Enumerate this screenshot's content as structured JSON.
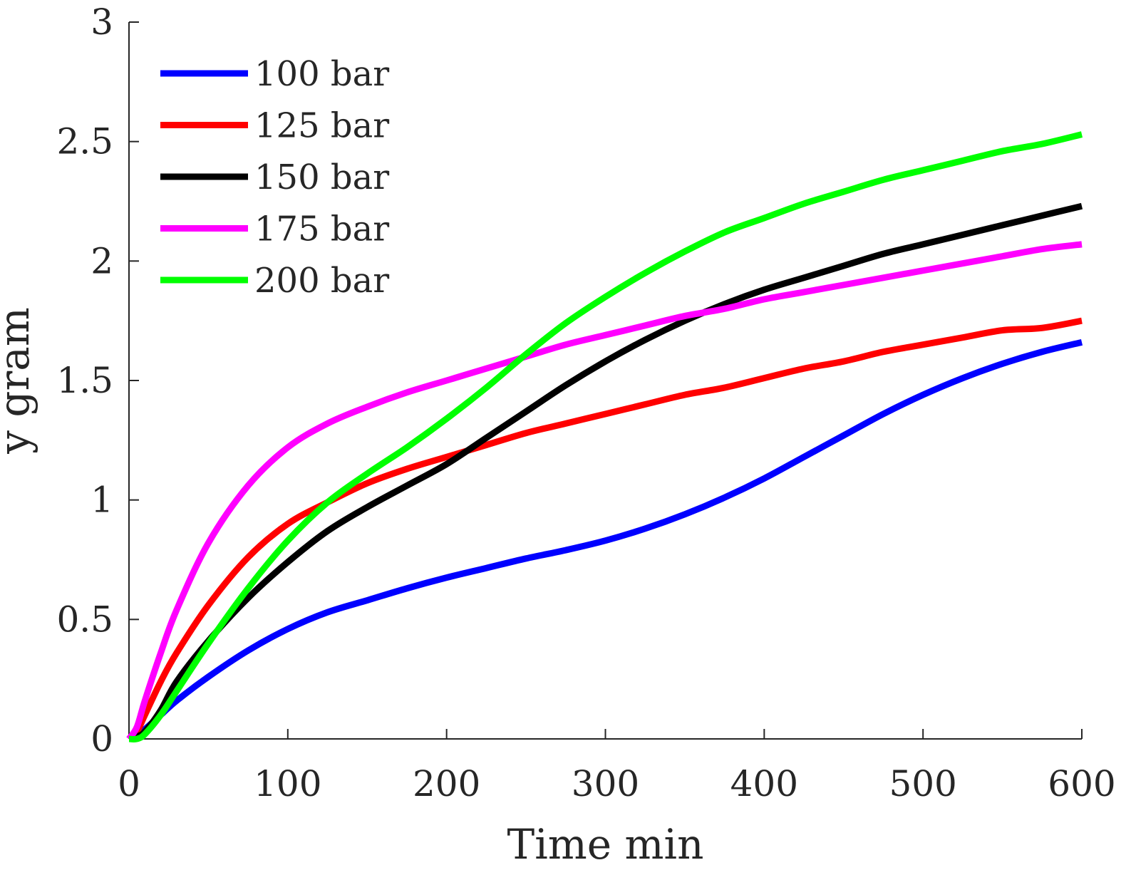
{
  "chart_data": {
    "type": "line",
    "title": "",
    "xlabel": "Time min",
    "ylabel": "y gram",
    "xlim": [
      0,
      600
    ],
    "ylim": [
      0,
      3
    ],
    "xticks": [
      0,
      100,
      200,
      300,
      400,
      500,
      600
    ],
    "yticks": [
      0,
      0.5,
      1,
      1.5,
      2,
      2.5,
      3
    ],
    "xtick_labels": [
      "0",
      "100",
      "200",
      "300",
      "400",
      "500",
      "600"
    ],
    "ytick_labels": [
      "0",
      "0.5",
      "1",
      "1.5",
      "2",
      "2.5",
      "3"
    ],
    "grid": false,
    "legend_position": "top-left",
    "series": [
      {
        "name": "100 bar",
        "color": "#0000ff",
        "x": [
          0,
          5,
          10,
          20,
          30,
          50,
          75,
          100,
          125,
          150,
          175,
          200,
          225,
          250,
          275,
          300,
          325,
          350,
          375,
          400,
          425,
          450,
          475,
          500,
          525,
          550,
          575,
          600
        ],
        "y": [
          0,
          0.01,
          0.04,
          0.1,
          0.16,
          0.26,
          0.37,
          0.46,
          0.53,
          0.58,
          0.63,
          0.675,
          0.715,
          0.755,
          0.79,
          0.83,
          0.88,
          0.94,
          1.01,
          1.09,
          1.18,
          1.27,
          1.36,
          1.44,
          1.51,
          1.57,
          1.62,
          1.66
        ]
      },
      {
        "name": "125 bar",
        "color": "#ff0000",
        "x": [
          0,
          5,
          10,
          20,
          30,
          50,
          75,
          100,
          125,
          150,
          175,
          200,
          225,
          250,
          275,
          300,
          325,
          350,
          375,
          400,
          425,
          450,
          475,
          500,
          525,
          550,
          575,
          600
        ],
        "y": [
          0,
          0.03,
          0.1,
          0.24,
          0.36,
          0.56,
          0.76,
          0.9,
          0.99,
          1.07,
          1.13,
          1.18,
          1.23,
          1.28,
          1.32,
          1.36,
          1.4,
          1.44,
          1.47,
          1.51,
          1.55,
          1.58,
          1.62,
          1.65,
          1.68,
          1.71,
          1.72,
          1.75
        ]
      },
      {
        "name": "150 bar",
        "color": "#000000",
        "x": [
          0,
          5,
          10,
          20,
          30,
          50,
          75,
          100,
          125,
          150,
          175,
          200,
          225,
          250,
          275,
          300,
          325,
          350,
          375,
          400,
          425,
          450,
          475,
          500,
          525,
          550,
          575,
          600
        ],
        "y": [
          0,
          0.01,
          0.03,
          0.12,
          0.24,
          0.41,
          0.59,
          0.74,
          0.87,
          0.97,
          1.06,
          1.15,
          1.26,
          1.37,
          1.48,
          1.58,
          1.67,
          1.75,
          1.82,
          1.88,
          1.93,
          1.98,
          2.03,
          2.07,
          2.11,
          2.15,
          2.19,
          2.23
        ]
      },
      {
        "name": "175 bar",
        "color": "#ff00ff",
        "x": [
          0,
          5,
          10,
          20,
          30,
          50,
          75,
          100,
          125,
          150,
          175,
          200,
          225,
          250,
          275,
          300,
          325,
          350,
          375,
          400,
          425,
          450,
          475,
          500,
          525,
          550,
          575,
          600
        ],
        "y": [
          0,
          0.05,
          0.16,
          0.36,
          0.54,
          0.82,
          1.06,
          1.22,
          1.32,
          1.39,
          1.45,
          1.5,
          1.55,
          1.6,
          1.65,
          1.69,
          1.73,
          1.77,
          1.8,
          1.84,
          1.87,
          1.9,
          1.93,
          1.96,
          1.99,
          2.02,
          2.05,
          2.07
        ]
      },
      {
        "name": "200 bar",
        "color": "#00ff00",
        "x": [
          0,
          5,
          10,
          20,
          30,
          50,
          75,
          100,
          125,
          150,
          175,
          200,
          225,
          250,
          275,
          300,
          325,
          350,
          375,
          400,
          425,
          450,
          475,
          500,
          525,
          550,
          575,
          600
        ],
        "y": [
          0,
          0.0,
          0.02,
          0.1,
          0.2,
          0.4,
          0.63,
          0.83,
          0.99,
          1.11,
          1.22,
          1.34,
          1.47,
          1.61,
          1.74,
          1.85,
          1.95,
          2.04,
          2.12,
          2.18,
          2.24,
          2.29,
          2.34,
          2.38,
          2.42,
          2.46,
          2.49,
          2.53
        ]
      }
    ]
  }
}
